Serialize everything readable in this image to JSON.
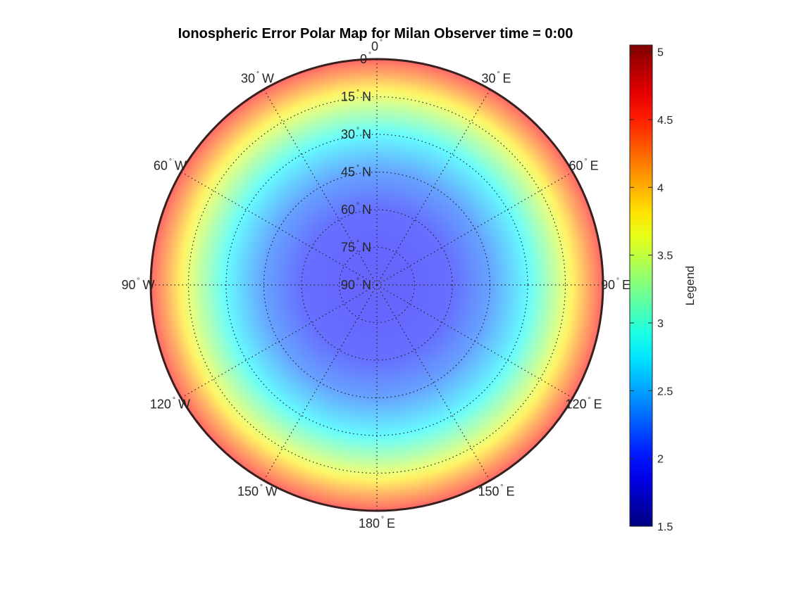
{
  "chart_data": {
    "type": "heatmap",
    "projection": "polar (north-pole azimuthal)",
    "title": "Ionospheric Error Polar Map for Milan Observer time = 0:00",
    "colorbar": {
      "label": "Legend",
      "colormap": "jet",
      "range": [
        1.5,
        5.05
      ],
      "ticks": [
        "1.5",
        "2",
        "2.5",
        "3",
        "3.5",
        "4",
        "4.5",
        "5"
      ]
    },
    "latitude_labels": [
      "0",
      "15",
      "30",
      "45",
      "60",
      "75",
      "90"
    ],
    "latitude_suffix": "N",
    "longitude_labels": [
      {
        "value": "180",
        "hemi": "E"
      },
      {
        "value": "150",
        "hemi": "E"
      },
      {
        "value": "120",
        "hemi": "E"
      },
      {
        "value": "90",
        "hemi": "E"
      },
      {
        "value": "60",
        "hemi": "E"
      },
      {
        "value": "30",
        "hemi": "E"
      },
      {
        "value": "0",
        "hemi": ""
      },
      {
        "value": "30",
        "hemi": "W"
      },
      {
        "value": "60",
        "hemi": "W"
      },
      {
        "value": "90",
        "hemi": "W"
      },
      {
        "value": "120",
        "hemi": "W"
      },
      {
        "value": "150",
        "hemi": "W"
      }
    ],
    "error_profile_by_latitude": {
      "latitude": [
        90,
        75,
        60,
        45,
        30,
        15,
        0
      ],
      "value": [
        1.9,
        1.95,
        2.0,
        2.3,
        2.8,
        3.6,
        4.6
      ]
    },
    "grid": true,
    "grid_style": "dotted",
    "alpha": 0.6
  }
}
